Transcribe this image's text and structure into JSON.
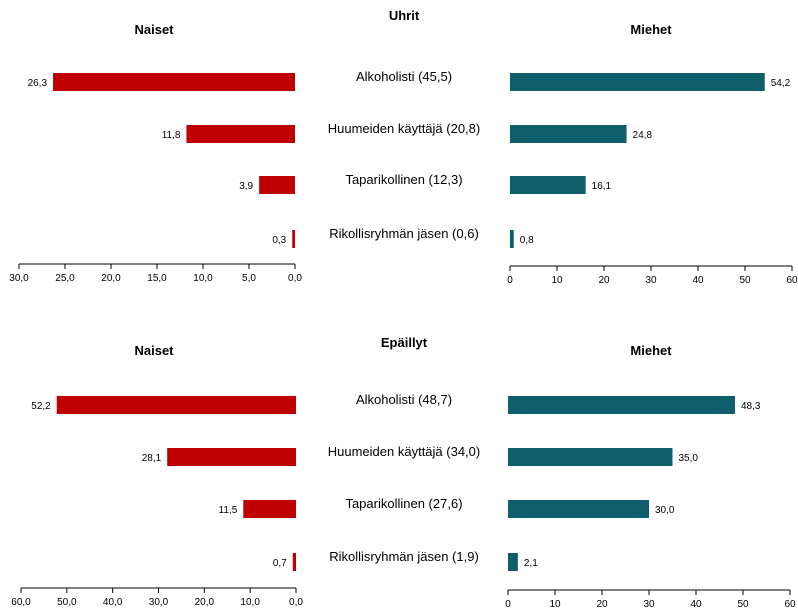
{
  "chart_data": [
    {
      "type": "bar",
      "group": "Uhrit",
      "title": "Uhrit",
      "left_title": "Naiset",
      "right_title": "Miehet",
      "categories": [
        "Alkoholisti (45,5)",
        "Huumeiden käyttäjä (20,8)",
        "Taparikollinen (12,3)",
        "Rikollisryhmän jäsen (0,6)"
      ],
      "series": [
        {
          "name": "Naiset",
          "values": [
            26.3,
            11.8,
            3.9,
            0.3
          ],
          "labels": [
            "26,3",
            "11,8",
            "3,9",
            "0,3"
          ],
          "color": "#c00000"
        },
        {
          "name": "Miehet",
          "values": [
            54.2,
            24.8,
            16.1,
            0.8
          ],
          "labels": [
            "54,2",
            "24,8",
            "16,1",
            "0,8"
          ],
          "color": "#0f5e6b"
        }
      ],
      "left_axis": {
        "range": [
          30,
          0
        ],
        "ticks": [
          30,
          25,
          20,
          15,
          10,
          5,
          0
        ],
        "tick_labels": [
          "30,0",
          "25,0",
          "20,0",
          "15,0",
          "10,0",
          "5,0",
          "0,0"
        ]
      },
      "right_axis": {
        "range": [
          0,
          60
        ],
        "ticks": [
          0,
          10,
          20,
          30,
          40,
          50,
          60
        ],
        "tick_labels": [
          "0",
          "10",
          "20",
          "30",
          "40",
          "50",
          "60"
        ]
      }
    },
    {
      "type": "bar",
      "group": "Epäillyt",
      "title": "Epäillyt",
      "left_title": "Naiset",
      "right_title": "Miehet",
      "categories": [
        "Alkoholisti (48,7)",
        "Huumeiden käyttäjä (34,0)",
        "Taparikollinen (27,6)",
        "Rikollisryhmän jäsen (1,9)"
      ],
      "series": [
        {
          "name": "Naiset",
          "values": [
            52.2,
            28.1,
            11.5,
            0.7
          ],
          "labels": [
            "52,2",
            "28,1",
            "11,5",
            "0,7"
          ],
          "color": "#c00000"
        },
        {
          "name": "Miehet",
          "values": [
            48.3,
            35.0,
            30.0,
            2.1
          ],
          "labels": [
            "48,3",
            "35,0",
            "30,0",
            "2,1"
          ],
          "color": "#0f5e6b"
        }
      ],
      "left_axis": {
        "range": [
          60,
          0
        ],
        "ticks": [
          60,
          50,
          40,
          30,
          20,
          10,
          0
        ],
        "tick_labels": [
          "60,0",
          "50,0",
          "40,0",
          "30,0",
          "20,0",
          "10,0",
          "0,0"
        ]
      },
      "right_axis": {
        "range": [
          0,
          60
        ],
        "ticks": [
          0,
          10,
          20,
          30,
          40,
          50,
          60
        ],
        "tick_labels": [
          "0",
          "10",
          "20",
          "30",
          "40",
          "50",
          "60"
        ]
      }
    }
  ]
}
